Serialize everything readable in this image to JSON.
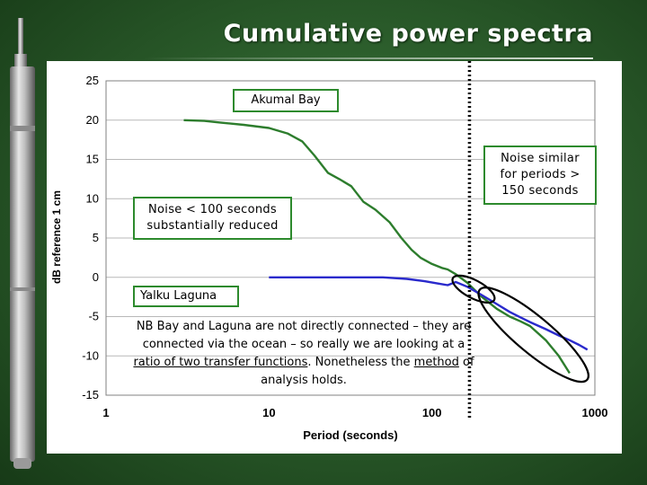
{
  "slide": {
    "title": "Cumulative power spectra",
    "accent_color": "#2d8a2d",
    "background_color": "#2c5e2c",
    "decoration": "vertical-pressure-sensor-photo"
  },
  "chart_data": {
    "type": "line",
    "title": "",
    "xlabel": "Period (seconds)",
    "ylabel": "dB reference 1 cm",
    "x_scale": "log",
    "xlim": [
      1,
      1000
    ],
    "ylim": [
      -15,
      25
    ],
    "x_ticks": [
      "1",
      "10",
      "100",
      "1000"
    ],
    "y_ticks": [
      "25",
      "20",
      "15",
      "10",
      "5",
      "0",
      "-5",
      "-10",
      "-15"
    ],
    "grid": "horizontal",
    "series": [
      {
        "name": "Akumal Bay",
        "color": "#2d7d2d",
        "points": [
          [
            3,
            20
          ],
          [
            4,
            19.9
          ],
          [
            5,
            19.7
          ],
          [
            7,
            19.4
          ],
          [
            10,
            19.0
          ],
          [
            13,
            18.3
          ],
          [
            16,
            17.3
          ],
          [
            19,
            15.5
          ],
          [
            23,
            13.3
          ],
          [
            27,
            12.5
          ],
          [
            32,
            11.6
          ],
          [
            38,
            9.6
          ],
          [
            45,
            8.6
          ],
          [
            55,
            7.0
          ],
          [
            65,
            5.0
          ],
          [
            75,
            3.5
          ],
          [
            85,
            2.5
          ],
          [
            100,
            1.7
          ],
          [
            115,
            1.2
          ],
          [
            125,
            1.0
          ],
          [
            140,
            0.4
          ],
          [
            165,
            -0.7
          ],
          [
            200,
            -2.4
          ],
          [
            250,
            -4.0
          ],
          [
            300,
            -5.0
          ],
          [
            350,
            -5.6
          ],
          [
            400,
            -6.2
          ],
          [
            500,
            -8.0
          ],
          [
            600,
            -10.0
          ],
          [
            700,
            -12.2
          ]
        ]
      },
      {
        "name": "Yalku Laguna",
        "color": "#2a2acc",
        "points": [
          [
            10,
            0.0
          ],
          [
            20,
            0.0
          ],
          [
            30,
            0.0
          ],
          [
            50,
            0.0
          ],
          [
            70,
            -0.2
          ],
          [
            90,
            -0.5
          ],
          [
            110,
            -0.8
          ],
          [
            125,
            -1.0
          ],
          [
            140,
            -0.6
          ],
          [
            165,
            -1.2
          ],
          [
            200,
            -2.2
          ],
          [
            250,
            -3.4
          ],
          [
            300,
            -4.4
          ],
          [
            350,
            -5.1
          ],
          [
            400,
            -5.7
          ],
          [
            500,
            -6.6
          ],
          [
            600,
            -7.4
          ],
          [
            700,
            -8.0
          ],
          [
            800,
            -8.6
          ],
          [
            900,
            -9.2
          ]
        ]
      }
    ],
    "annotations": {
      "akumal_label": "Akumal Bay",
      "yalku_label": "Yalku Laguna",
      "noise_reduced": "Noise < 100 seconds substantially reduced",
      "noise_similar": "Noise similar for periods > 150 seconds",
      "connection_note_a": "NB Bay and Laguna are not directly connected – they are connected via the ocean – so really we are looking at a ",
      "connection_note_ratio": "ratio of two transfer functions",
      "connection_note_b": ". Nonetheless the ",
      "connection_note_method": "method",
      "connection_note_c": " of analysis holds.",
      "divider_period": 170
    }
  }
}
